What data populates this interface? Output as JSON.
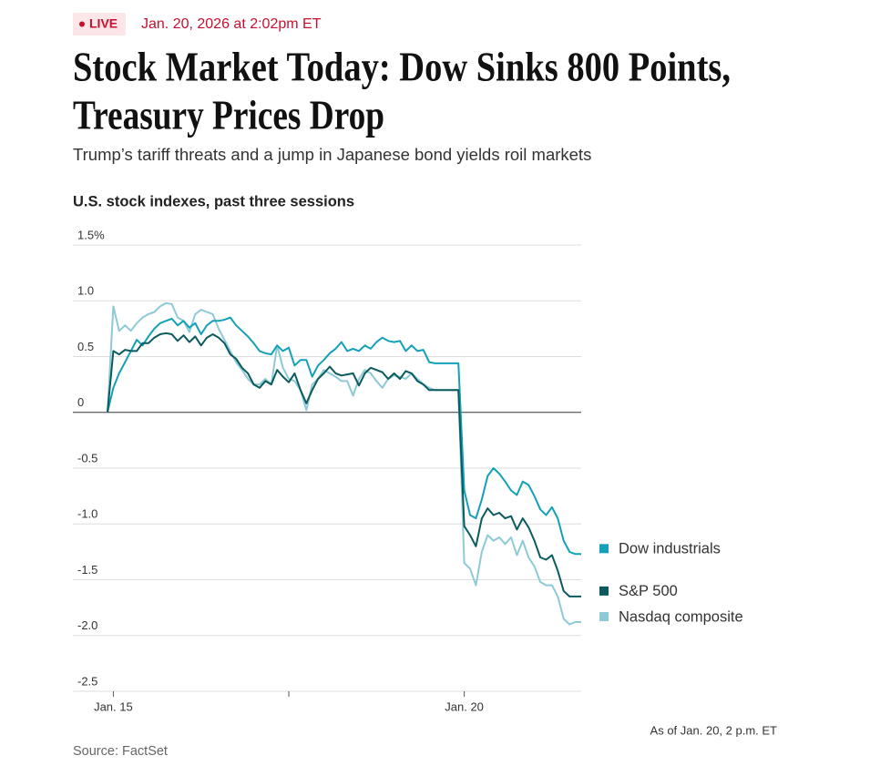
{
  "header": {
    "live_badge": "LIVE",
    "timestamp": "Jan. 20, 2026 at 2:02pm ET",
    "title_lines": [
      "Stock Market Today: Dow Sinks 800 Points,",
      "Treasury Prices Drop"
    ],
    "subtitle": "Trump’s tariff threats and a jump in Japanese bond yields roil markets"
  },
  "chart_data": {
    "type": "line",
    "title": "U.S. stock indexes, past three sessions",
    "x": [
      0,
      1,
      2,
      3,
      4,
      5,
      6,
      7,
      8,
      9,
      10,
      11,
      12,
      13,
      14,
      15,
      16,
      17,
      18,
      19,
      20,
      21,
      22,
      23,
      24,
      25,
      26,
      27,
      28,
      29,
      30,
      31,
      32,
      33,
      34,
      35,
      36,
      37,
      38,
      39,
      40,
      41,
      42,
      43,
      44,
      45,
      46,
      47,
      48,
      49,
      50,
      51,
      52,
      53,
      54,
      55,
      56,
      57,
      58,
      59,
      60,
      61,
      62,
      63,
      64,
      65,
      66,
      67,
      68,
      69,
      70,
      71,
      72,
      73,
      74,
      75,
      76,
      77,
      78,
      79,
      80,
      81
    ],
    "xlim": [
      0,
      81
    ],
    "xticks": [
      {
        "value": 1,
        "label": "Jan. 15"
      },
      {
        "value": 61,
        "label": "Jan. 20"
      }
    ],
    "xminor_ticks": [
      31
    ],
    "ylim": [
      -2.5,
      1.5
    ],
    "yticks": [
      {
        "value": 1.5,
        "label": "1.5%"
      },
      {
        "value": 1,
        "label": "1.0"
      },
      0.5,
      0,
      -0.5,
      {
        "value": -1,
        "label": "-1.0"
      },
      -1.5,
      {
        "value": -2,
        "label": "-2.0"
      },
      -2.5
    ],
    "grid": true,
    "series": [
      {
        "name": "Dow industrials",
        "color": "#14a1b8",
        "values": [
          0,
          0.22,
          0.35,
          0.45,
          0.55,
          0.65,
          0.6,
          0.68,
          0.75,
          0.8,
          0.82,
          0.84,
          0.78,
          0.82,
          0.76,
          0.8,
          0.7,
          0.78,
          0.82,
          0.82,
          0.83,
          0.85,
          0.78,
          0.73,
          0.68,
          0.62,
          0.55,
          0.53,
          0.52,
          0.6,
          0.55,
          0.58,
          0.42,
          0.47,
          0.47,
          0.32,
          0.42,
          0.47,
          0.53,
          0.57,
          0.63,
          0.55,
          0.57,
          0.55,
          0.6,
          0.57,
          0.63,
          0.67,
          0.64,
          0.63,
          0.64,
          0.55,
          0.6,
          0.55,
          0.56,
          0.45,
          0.44,
          0.44,
          0.44,
          0.44,
          0.44,
          -0.7,
          -0.92,
          -0.95,
          -0.78,
          -0.57,
          -0.5,
          -0.55,
          -0.62,
          -0.7,
          -0.74,
          -0.62,
          -0.65,
          -0.75,
          -0.87,
          -0.92,
          -0.85,
          -0.95,
          -1.15,
          -1.25,
          -1.27,
          -1.27
        ]
      },
      {
        "name": "S&P 500",
        "color": "#0b5b5e",
        "values": [
          0,
          0.55,
          0.52,
          0.56,
          0.55,
          0.55,
          0.62,
          0.62,
          0.67,
          0.7,
          0.71,
          0.7,
          0.64,
          0.69,
          0.63,
          0.68,
          0.6,
          0.67,
          0.7,
          0.67,
          0.62,
          0.52,
          0.48,
          0.4,
          0.35,
          0.25,
          0.22,
          0.28,
          0.25,
          0.38,
          0.32,
          0.27,
          0.35,
          0.2,
          0.08,
          0.2,
          0.3,
          0.35,
          0.41,
          0.35,
          0.33,
          0.34,
          0.35,
          0.24,
          0.35,
          0.4,
          0.38,
          0.36,
          0.3,
          0.35,
          0.3,
          0.37,
          0.35,
          0.28,
          0.25,
          0.2,
          0.2,
          0.2,
          0.2,
          0.2,
          0.2,
          -1.02,
          -1.1,
          -1.2,
          -0.95,
          -0.86,
          -0.92,
          -0.9,
          -0.95,
          -0.93,
          -1.05,
          -0.95,
          -1.03,
          -1.15,
          -1.3,
          -1.32,
          -1.28,
          -1.42,
          -1.6,
          -1.65,
          -1.65,
          -1.65
        ]
      },
      {
        "name": "Nasdaq composite",
        "color": "#8dcad6",
        "values": [
          0,
          0.95,
          0.73,
          0.78,
          0.73,
          0.8,
          0.85,
          0.88,
          0.9,
          0.95,
          0.98,
          0.97,
          0.85,
          0.82,
          0.72,
          0.88,
          0.92,
          0.9,
          0.88,
          0.75,
          0.65,
          0.55,
          0.45,
          0.38,
          0.3,
          0.25,
          0.25,
          0.3,
          0.25,
          0.6,
          0.4,
          0.3,
          0.28,
          0.2,
          0.02,
          0.25,
          0.3,
          0.38,
          0.35,
          0.32,
          0.28,
          0.28,
          0.15,
          0.3,
          0.38,
          0.35,
          0.28,
          0.22,
          0.3,
          0.33,
          0.32,
          0.3,
          0.35,
          0.3,
          0.25,
          0.22,
          0.2,
          0.2,
          0.2,
          0.2,
          0.2,
          -1.35,
          -1.4,
          -1.55,
          -1.25,
          -1.1,
          -1.15,
          -1.12,
          -1.18,
          -1.12,
          -1.28,
          -1.15,
          -1.3,
          -1.38,
          -1.52,
          -1.55,
          -1.55,
          -1.65,
          -1.85,
          -1.9,
          -1.88,
          -1.88
        ]
      }
    ],
    "note": "As of Jan. 20, 2 p.m. ET"
  },
  "footer": {
    "source": "Source: FactSet"
  }
}
